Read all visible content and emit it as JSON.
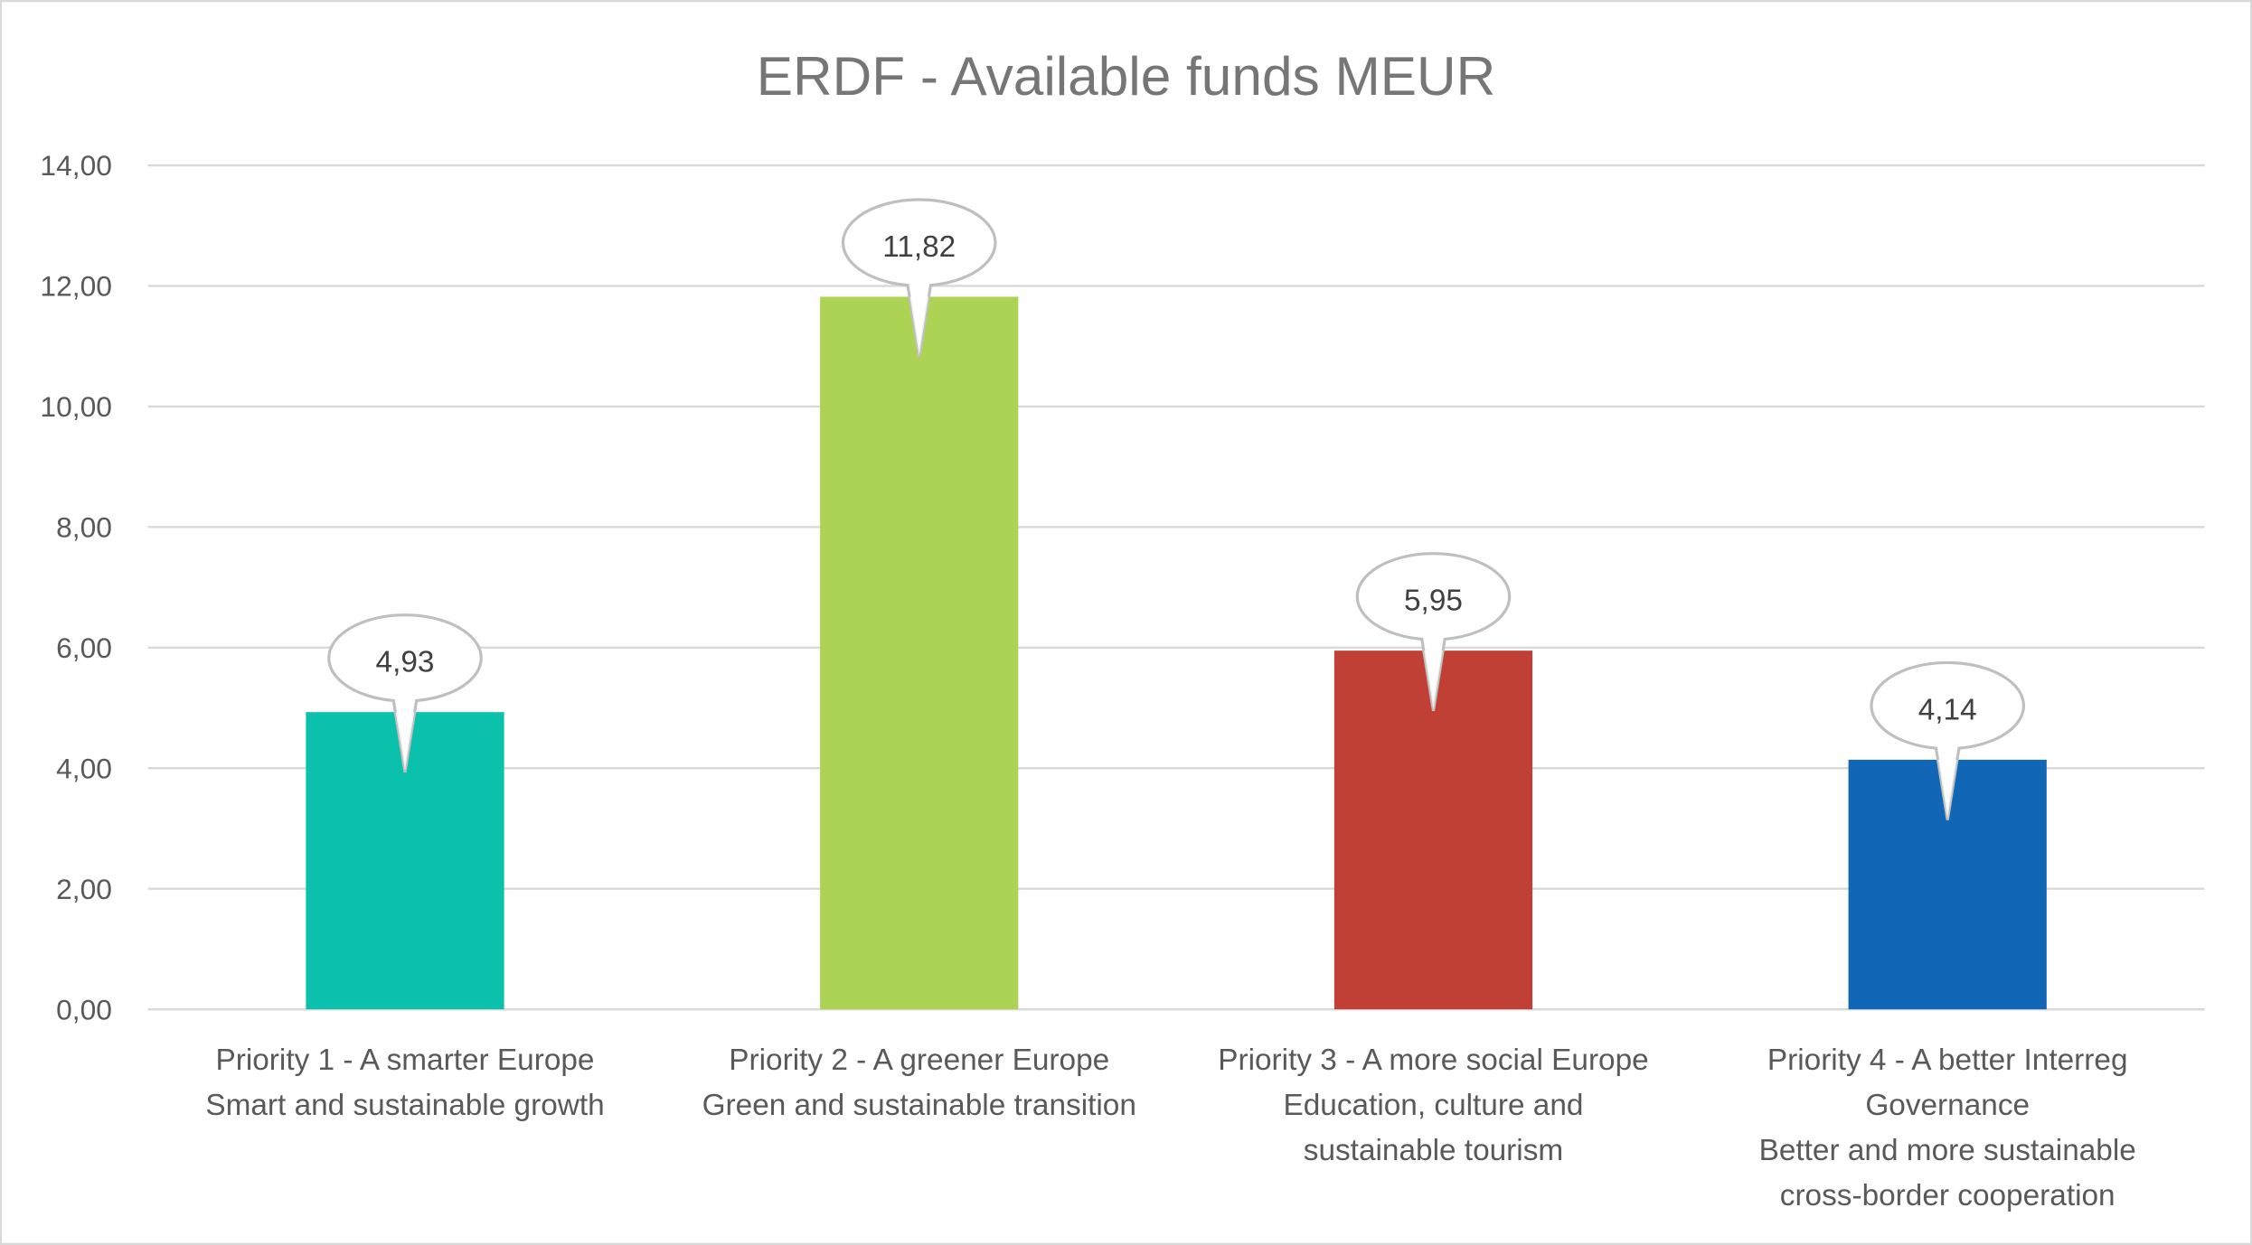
{
  "chart_data": {
    "type": "bar",
    "title": "ERDF - Available funds MEUR",
    "xlabel": "",
    "ylabel": "",
    "ylim": [
      0,
      14
    ],
    "yticks": [
      0,
      2,
      4,
      6,
      8,
      10,
      12,
      14
    ],
    "ytick_labels": [
      "0,00",
      "2,00",
      "4,00",
      "6,00",
      "8,00",
      "10,00",
      "12,00",
      "14,00"
    ],
    "grid": true,
    "legend": "none",
    "categories": [
      [
        "Priority 1 - A smarter Europe",
        "Smart and sustainable growth"
      ],
      [
        "Priority 2 - A greener Europe",
        "Green and sustainable transition"
      ],
      [
        "Priority 3 - A more social Europe",
        "Education, culture and",
        "sustainable tourism"
      ],
      [
        "Priority 4 - A better Interreg",
        "Governance",
        "Better and more sustainable",
        "cross-border cooperation"
      ]
    ],
    "values": [
      4.93,
      11.82,
      5.95,
      4.14
    ],
    "data_labels": [
      "4,93",
      "11,82",
      "5,95",
      "4,14"
    ],
    "colors": [
      "#0BC1AC",
      "#ACD353",
      "#C04035",
      "#1166B5"
    ]
  }
}
